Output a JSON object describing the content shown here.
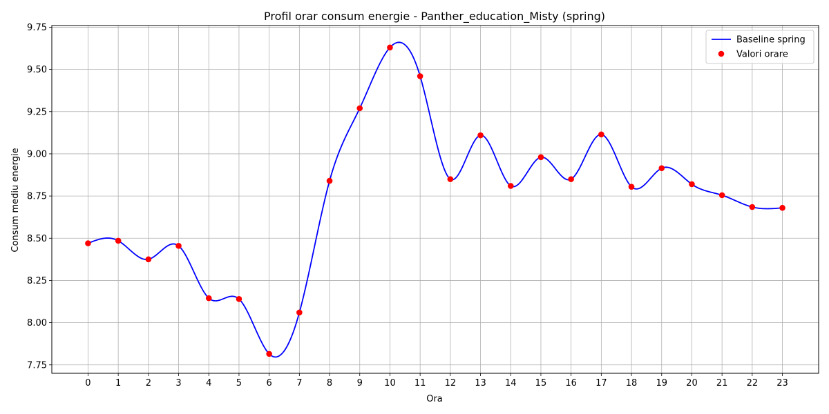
{
  "chart_data": {
    "type": "line",
    "title": "Profil orar consum energie - Panther_education_Misty (spring)",
    "xlabel": "Ora",
    "ylabel": "Consum mediu energie",
    "x": [
      0,
      1,
      2,
      3,
      4,
      5,
      6,
      7,
      8,
      9,
      10,
      11,
      12,
      13,
      14,
      15,
      16,
      17,
      18,
      19,
      20,
      21,
      22,
      23
    ],
    "x_tick_labels": [
      "0",
      "1",
      "2",
      "3",
      "4",
      "5",
      "6",
      "7",
      "8",
      "9",
      "10",
      "11",
      "12",
      "13",
      "14",
      "15",
      "16",
      "17",
      "18",
      "19",
      "20",
      "21",
      "22",
      "23"
    ],
    "y_ticks": [
      7.75,
      8.0,
      8.25,
      8.5,
      8.75,
      9.0,
      9.25,
      9.5,
      9.75
    ],
    "y_tick_labels": [
      "7.75",
      "8.00",
      "8.25",
      "8.50",
      "8.75",
      "9.00",
      "9.25",
      "9.50",
      "9.75"
    ],
    "xlim": [
      -1.2,
      24.2
    ],
    "ylim": [
      7.7,
      9.76
    ],
    "grid": true,
    "legend_position": "top-right",
    "series": [
      {
        "name": "Baseline spring",
        "kind": "smooth-line",
        "color": "#0000ff",
        "values": [
          8.47,
          8.485,
          8.375,
          8.455,
          8.145,
          8.14,
          7.815,
          8.06,
          8.84,
          9.27,
          9.63,
          9.46,
          8.85,
          9.11,
          8.81,
          8.98,
          8.85,
          9.115,
          8.805,
          8.915,
          8.82,
          8.755,
          8.685,
          8.68
        ]
      },
      {
        "name": "Valori orare",
        "kind": "scatter",
        "color": "#ff0000",
        "values": [
          8.47,
          8.485,
          8.375,
          8.455,
          8.145,
          8.14,
          7.815,
          8.06,
          8.84,
          9.27,
          9.63,
          9.46,
          8.85,
          9.11,
          8.81,
          8.98,
          8.85,
          9.115,
          8.805,
          8.915,
          8.82,
          8.755,
          8.685,
          8.68
        ]
      }
    ]
  }
}
